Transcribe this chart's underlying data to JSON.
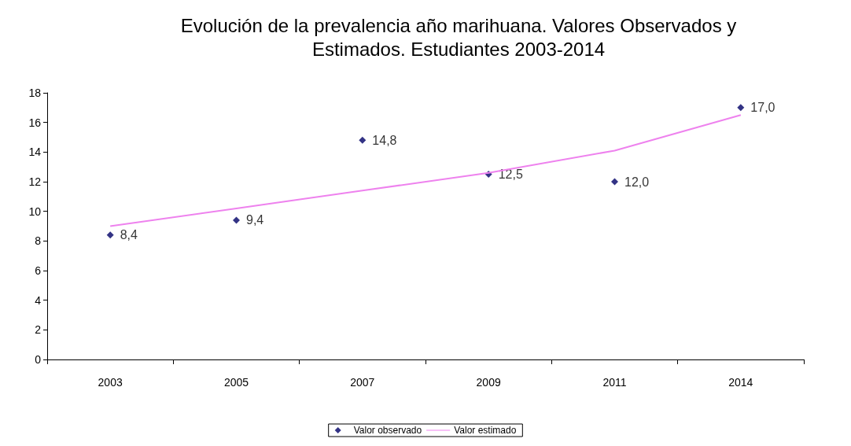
{
  "chart_data": {
    "type": "scatter",
    "title": "Evolución de la prevalencia año marihuana. Valores Observados y\nEstimados. Estudiantes 2003-2014",
    "categories": [
      "2003",
      "2005",
      "2007",
      "2009",
      "2011",
      "2014"
    ],
    "series": [
      {
        "name": "Valor observado",
        "marker": "diamond",
        "color": "#000066",
        "values": [
          8.4,
          9.4,
          14.8,
          12.5,
          12.0,
          17.0
        ],
        "value_labels": [
          "8,4",
          "9,4",
          "14,8",
          "12,5",
          "12,0",
          "17,0"
        ]
      },
      {
        "name": "Valor estimado",
        "type": "line",
        "marker": "none",
        "color": "#ee82ee",
        "values": [
          9.0,
          10.2,
          11.4,
          12.6,
          14.1,
          16.5
        ]
      }
    ],
    "ylim": [
      0,
      18
    ],
    "yticks": [
      0,
      2,
      4,
      6,
      8,
      10,
      12,
      14,
      16,
      18
    ],
    "grid": false,
    "legend": "bottom"
  }
}
